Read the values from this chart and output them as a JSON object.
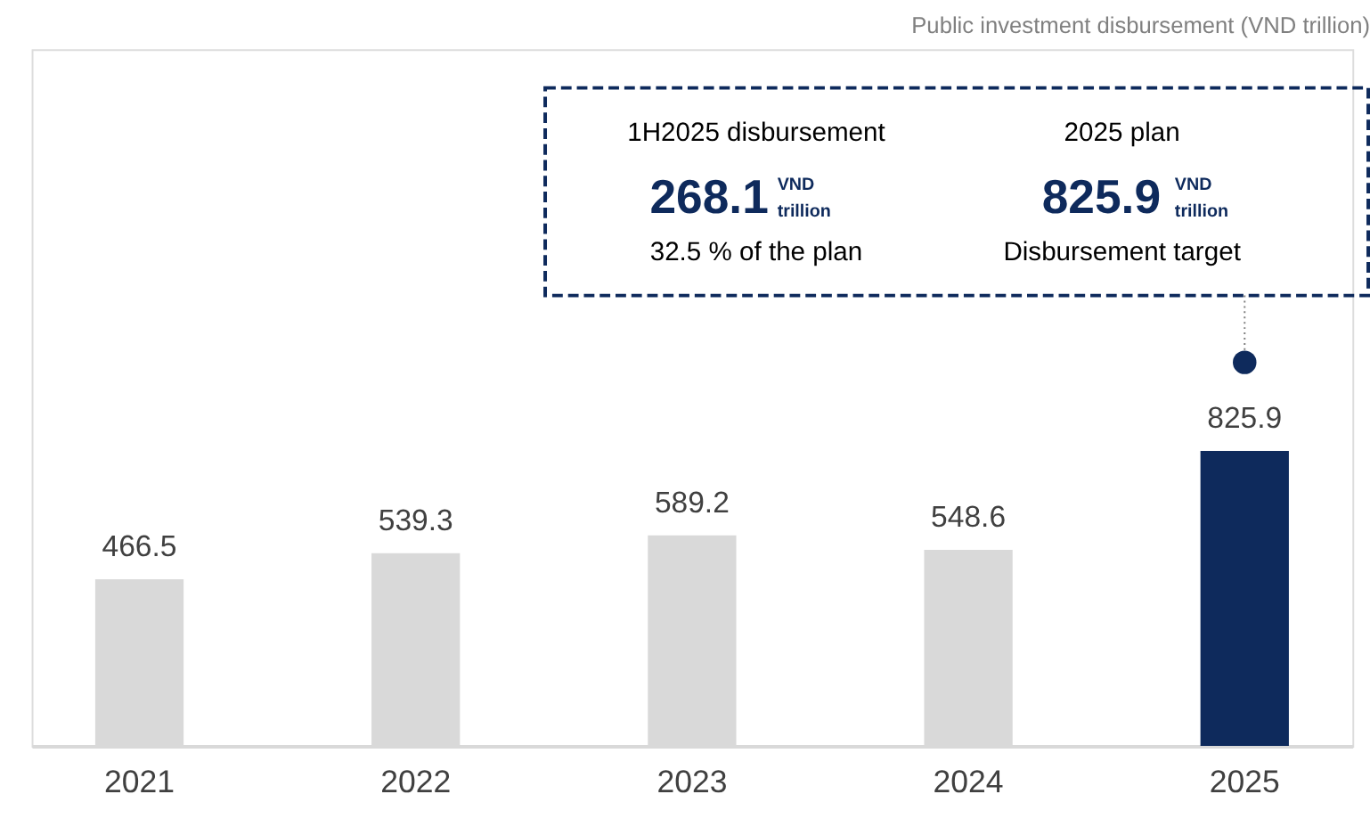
{
  "chart_data": {
    "type": "bar",
    "title": "Public investment disbursement (VND trillion)",
    "categories": [
      "2021",
      "2022",
      "2023",
      "2024",
      "2025"
    ],
    "values": [
      466.5,
      539.3,
      589.2,
      548.6,
      825.9
    ],
    "colors": [
      "#d9d9d9",
      "#d9d9d9",
      "#d9d9d9",
      "#d9d9d9",
      "#0e2a5c"
    ],
    "ylim": [
      0,
      1950
    ],
    "data_labels": true,
    "tick_labels": "x",
    "grid": false,
    "annotations": [
      "1H2025 disbursement",
      "268.1",
      "VND",
      "trillion",
      "32.5 % of the plan",
      "2025 plan",
      "825.9",
      "VND",
      "trillion",
      "Disbursement target"
    ]
  }
}
